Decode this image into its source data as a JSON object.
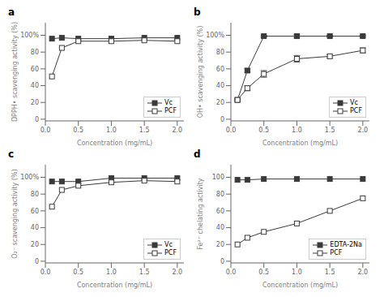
{
  "chart_data": [
    {
      "type": "line",
      "title": "a",
      "xlabel": "Concentration (mg/mL)",
      "ylabel": "DPPH• scavenging activity (%)",
      "x": [
        0.1,
        0.25,
        0.5,
        1.0,
        1.5,
        2.0
      ],
      "series": [
        {
          "name": "Vc",
          "color": "#3a3a3a",
          "marker": "square",
          "values": [
            96,
            97,
            96,
            96,
            97,
            97
          ]
        },
        {
          "name": "PCF",
          "color": "#3a3a3a",
          "marker": "square-open",
          "values": [
            51,
            85,
            93,
            93,
            94,
            93
          ]
        }
      ],
      "xlim": [
        0.0,
        2.1
      ],
      "xticks": [
        {
          "value": 0,
          "label": "0.0"
        },
        0.5,
        {
          "value": 1,
          "label": "1.0"
        },
        1.5,
        {
          "value": 2,
          "label": "2.0"
        }
      ],
      "ylim": [
        -2,
        115
      ],
      "yticks": [
        0,
        20,
        40,
        60,
        80,
        {
          "value": 100,
          "label": "100%"
        }
      ],
      "legend": "lower right",
      "grid": false
    },
    {
      "type": "line",
      "title": "b",
      "xlabel": "Concentration (mg/mL)",
      "ylabel": "OH• scavenging activity (%)",
      "x": [
        0.1,
        0.25,
        0.5,
        1.0,
        1.5,
        2.0
      ],
      "series": [
        {
          "name": "Vc",
          "color": "#3a3a3a",
          "marker": "square",
          "values": [
            23,
            58,
            99,
            99,
            99,
            99
          ],
          "errors": [
            1,
            2,
            1,
            2,
            1,
            1
          ]
        },
        {
          "name": "PCF",
          "color": "#3a3a3a",
          "marker": "square-open",
          "values": [
            23,
            37,
            54,
            72,
            75,
            82
          ],
          "errors": [
            1,
            3,
            4,
            4,
            2,
            3
          ]
        }
      ],
      "xlim": [
        0.0,
        2.1
      ],
      "xticks": [
        {
          "value": 0,
          "label": "0.0"
        },
        0.5,
        {
          "value": 1,
          "label": "1.0"
        },
        1.5,
        {
          "value": 2,
          "label": "2.0"
        }
      ],
      "ylim": [
        -2,
        115
      ],
      "yticks": [
        0,
        20,
        40,
        60,
        80,
        {
          "value": 100,
          "label": "100%"
        }
      ],
      "legend": "lower right",
      "grid": false
    },
    {
      "type": "line",
      "title": "c",
      "xlabel": "Concentration (mg/mL)",
      "ylabel": "O₂⁻ scavenging activity (%)",
      "x": [
        0.1,
        0.25,
        0.5,
        1.0,
        1.5,
        2.0
      ],
      "series": [
        {
          "name": "Vc",
          "color": "#3a3a3a",
          "marker": "square",
          "values": [
            95,
            95,
            95,
            99,
            99,
            99
          ]
        },
        {
          "name": "PCF",
          "color": "#3a3a3a",
          "marker": "square-open",
          "values": [
            65,
            85,
            90,
            94,
            96,
            95
          ]
        }
      ],
      "xlim": [
        0.0,
        2.1
      ],
      "xticks": [
        {
          "value": 0,
          "label": "0.0"
        },
        0.5,
        {
          "value": 1,
          "label": "1.0"
        },
        1.5,
        {
          "value": 2,
          "label": "2.0"
        }
      ],
      "ylim": [
        -2,
        115
      ],
      "yticks": [
        0,
        20,
        40,
        60,
        80,
        {
          "value": 100,
          "label": "100%"
        }
      ],
      "legend": "lower right",
      "grid": false
    },
    {
      "type": "line",
      "title": "d",
      "xlabel": "Concentration (mg/mL)",
      "ylabel": "Fe²⁺ chelating activity",
      "x": [
        0.1,
        0.25,
        0.5,
        1.0,
        1.5,
        2.0
      ],
      "series": [
        {
          "name": "EDTA-2Na",
          "color": "#3a3a3a",
          "marker": "square",
          "values": [
            97,
            97,
            98,
            98,
            98,
            98
          ]
        },
        {
          "name": "PCF",
          "color": "#3a3a3a",
          "marker": "square-open",
          "values": [
            20,
            28,
            35,
            45,
            60,
            75
          ]
        }
      ],
      "xlim": [
        0.0,
        2.1
      ],
      "xticks": [
        {
          "value": 0,
          "label": "0.0"
        },
        0.5,
        {
          "value": 1,
          "label": "1.0"
        },
        1.5,
        {
          "value": 2,
          "label": "2.0"
        }
      ],
      "ylim": [
        -2,
        115
      ],
      "yticks": [
        0,
        20,
        40,
        60,
        80,
        100
      ],
      "legend": "lower right",
      "grid": false
    }
  ]
}
